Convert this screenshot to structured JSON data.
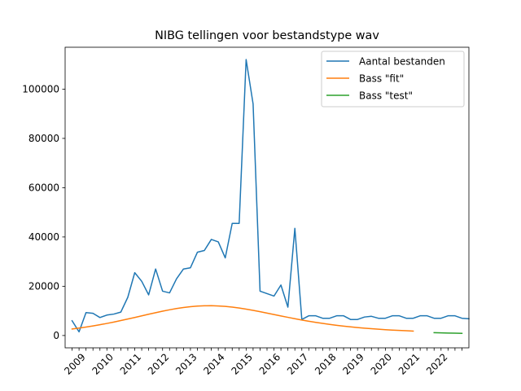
{
  "chart_data": {
    "type": "line",
    "title": "NIBG tellingen voor bestandstype wav",
    "xlabel": "",
    "ylabel": "",
    "x_unit": "quarter",
    "x_start": "2008-Q3",
    "xlim": [
      "2008-Q2",
      "2022-Q4"
    ],
    "ylim": [
      -5000,
      117000
    ],
    "grid": false,
    "legend_position": "upper right",
    "x_tick_labels": [
      "2009",
      "2010",
      "2011",
      "2012",
      "2013",
      "2014",
      "2015",
      "2016",
      "2017",
      "2018",
      "2019",
      "2020",
      "2021",
      "2022"
    ],
    "y_ticks": [
      0,
      20000,
      40000,
      60000,
      80000,
      100000
    ],
    "y_tick_labels": [
      "0",
      "20000",
      "40000",
      "60000",
      "80000",
      "100000"
    ],
    "series": [
      {
        "name": "Aantal bestanden",
        "color": "#1f77b4",
        "start": "2008-Q3",
        "values": [
          6000,
          1500,
          9300,
          9000,
          7300,
          8300,
          8700,
          9500,
          15500,
          25500,
          22000,
          16500,
          27000,
          18000,
          17300,
          23000,
          27000,
          27500,
          33800,
          34500,
          39000,
          38000,
          31500,
          45500,
          45500,
          112000,
          94000,
          18000,
          17000,
          16000,
          20500,
          11500,
          43500,
          6500,
          8000,
          8000,
          7000,
          7000,
          8000,
          8000,
          6500,
          6500,
          7500,
          7800,
          7000,
          7000,
          8000,
          8000,
          7000,
          7000,
          8000,
          8000,
          7000,
          7000,
          8000,
          8000,
          7000,
          6800
        ]
      },
      {
        "name": "Bass \"fit\"",
        "color": "#ff7f0e",
        "start": "2008-Q3",
        "values": [
          2633,
          3012,
          3428,
          3881,
          4373,
          4902,
          5467,
          6063,
          6686,
          7328,
          7980,
          8631,
          9268,
          9875,
          10438,
          10939,
          11364,
          11700,
          11938,
          12070,
          12092,
          12005,
          11815,
          11528,
          11157,
          10713,
          10213,
          9672,
          9105,
          8526,
          7946,
          7376,
          6825,
          6298,
          5800,
          5334,
          4901,
          4503,
          4137,
          3804,
          3501,
          3226,
          2977,
          2753,
          2550,
          2368,
          2203,
          2056,
          1923,
          1803
        ]
      },
      {
        "name": "Bass \"test\"",
        "color": "#2ca02c",
        "start": "2021-Q3",
        "values": [
          1160,
          1082,
          1011,
          948,
          891
        ]
      }
    ]
  }
}
